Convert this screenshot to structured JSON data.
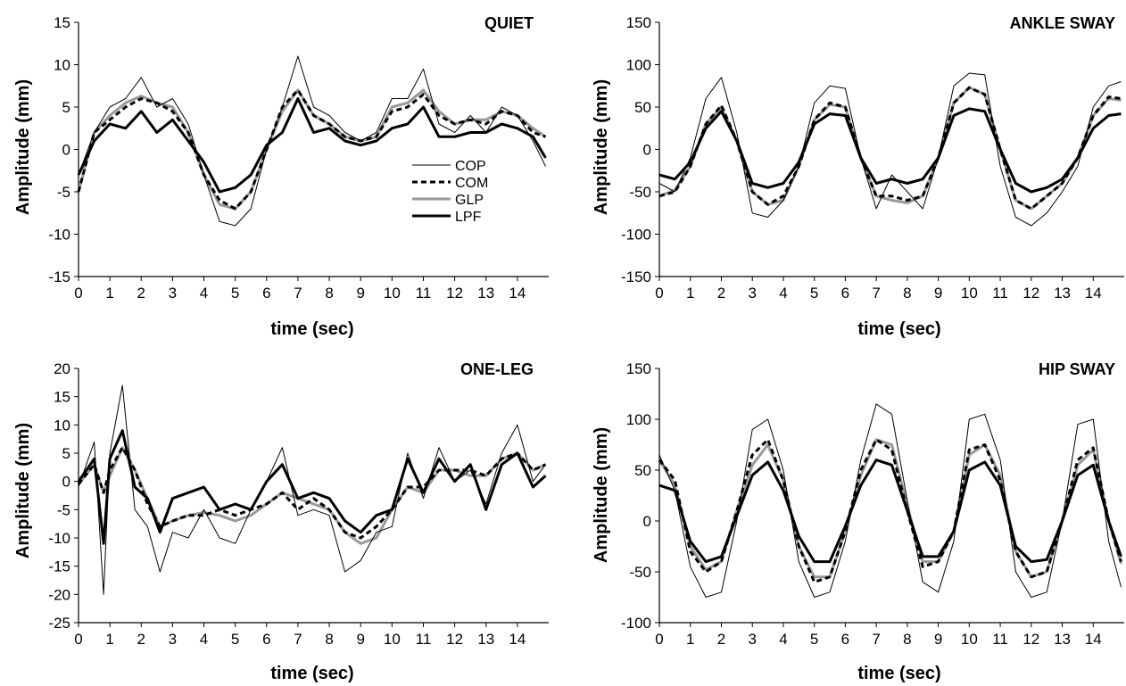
{
  "legend": [
    {
      "name": "COP",
      "color": "#000000",
      "width": 1,
      "dash": ""
    },
    {
      "name": "COM",
      "color": "#000000",
      "width": 3,
      "dash": "6,4"
    },
    {
      "name": "GLP",
      "color": "#999999",
      "width": 3,
      "dash": ""
    },
    {
      "name": "LPF",
      "color": "#000000",
      "width": 3,
      "dash": ""
    }
  ],
  "chart_data": [
    {
      "type": "line",
      "title": "QUIET",
      "xlabel": "time (sec)",
      "ylabel": "Amplitude (mm)",
      "xlim": [
        0,
        15
      ],
      "ylim": [
        -15,
        15
      ],
      "xticks": [
        0,
        1,
        2,
        3,
        4,
        5,
        6,
        7,
        8,
        9,
        10,
        11,
        12,
        13,
        14
      ],
      "yticks": [
        -15,
        -10,
        -5,
        0,
        5,
        10,
        15
      ],
      "x": [
        0,
        0.5,
        1,
        1.5,
        2,
        2.5,
        3,
        3.5,
        4,
        4.5,
        5,
        5.5,
        6,
        6.5,
        7,
        7.5,
        8,
        8.5,
        9,
        9.5,
        10,
        10.5,
        11,
        11.5,
        12,
        12.5,
        13,
        13.5,
        14,
        14.5,
        14.9
      ],
      "series": [
        {
          "name": "COP",
          "values": [
            -3,
            2,
            5,
            6,
            8.5,
            5,
            6,
            3,
            -3,
            -8.5,
            -9,
            -7,
            0,
            5,
            11,
            5,
            4,
            2,
            1,
            2,
            6,
            6,
            9.5,
            3,
            2,
            4,
            2,
            5,
            4,
            1,
            -2
          ]
        },
        {
          "name": "COM",
          "values": [
            -5,
            2,
            3.5,
            5,
            6,
            5.5,
            4.5,
            2,
            -3,
            -6,
            -7,
            -5,
            0,
            5,
            7,
            4,
            3,
            1.5,
            1,
            1.5,
            4.5,
            5,
            6.5,
            4,
            3,
            3.5,
            3,
            4.5,
            4,
            2,
            1.5
          ]
        },
        {
          "name": "GLP",
          "values": [
            -5,
            2,
            4,
            5.5,
            6.3,
            5.5,
            5,
            2,
            -3,
            -6.5,
            -7,
            -5,
            0,
            4.5,
            7,
            4,
            3,
            1.5,
            1,
            1.5,
            5,
            5.5,
            7,
            4.5,
            3,
            3.5,
            3.5,
            4.5,
            4,
            2.5,
            1.5
          ]
        },
        {
          "name": "LPF",
          "values": [
            -3,
            1,
            3,
            2.5,
            4.5,
            2,
            3.5,
            1,
            -1.5,
            -5,
            -4.5,
            -3,
            0.5,
            2,
            6,
            2,
            2.5,
            1,
            0.5,
            1,
            2.5,
            3,
            5,
            1.5,
            1.5,
            2,
            2,
            3,
            2.5,
            1.5,
            -1
          ]
        }
      ]
    },
    {
      "type": "line",
      "title": "ANKLE SWAY",
      "xlabel": "time (sec)",
      "ylabel": "Amplitude (mm)",
      "xlim": [
        0,
        15
      ],
      "ylim": [
        -150,
        150
      ],
      "xticks": [
        0,
        1,
        2,
        3,
        4,
        5,
        6,
        7,
        8,
        9,
        10,
        11,
        12,
        13,
        14
      ],
      "yticks": [
        -150,
        -100,
        -50,
        0,
        50,
        100,
        150
      ],
      "x": [
        0,
        0.5,
        1,
        1.5,
        2,
        2.5,
        3,
        3.5,
        4,
        4.5,
        5,
        5.5,
        6,
        6.5,
        7,
        7.5,
        8,
        8.5,
        9,
        9.5,
        10,
        10.5,
        11,
        11.5,
        12,
        12.5,
        13,
        13.5,
        14,
        14.5,
        14.9
      ],
      "series": [
        {
          "name": "COP",
          "values": [
            -40,
            -50,
            -10,
            60,
            85,
            20,
            -75,
            -80,
            -60,
            -20,
            55,
            75,
            72,
            -10,
            -70,
            -30,
            -50,
            -70,
            -10,
            75,
            90,
            88,
            -20,
            -80,
            -90,
            -75,
            -50,
            -20,
            50,
            75,
            80
          ]
        },
        {
          "name": "COM",
          "values": [
            -55,
            -50,
            -20,
            30,
            52,
            10,
            -50,
            -65,
            -55,
            -20,
            35,
            55,
            50,
            -10,
            -55,
            -55,
            -60,
            -55,
            -10,
            55,
            73,
            65,
            0,
            -60,
            -70,
            -55,
            -40,
            -10,
            40,
            62,
            60
          ]
        },
        {
          "name": "GLP",
          "values": [
            -55,
            -48,
            -20,
            30,
            50,
            10,
            -50,
            -65,
            -60,
            -20,
            35,
            53,
            50,
            -10,
            -55,
            -60,
            -63,
            -55,
            -10,
            55,
            73,
            65,
            0,
            -60,
            -70,
            -55,
            -40,
            -10,
            40,
            60,
            58
          ]
        },
        {
          "name": "LPF",
          "values": [
            -30,
            -35,
            -15,
            25,
            45,
            10,
            -40,
            -45,
            -40,
            -15,
            30,
            42,
            40,
            -10,
            -40,
            -35,
            -40,
            -35,
            -10,
            40,
            48,
            45,
            0,
            -40,
            -50,
            -45,
            -35,
            -10,
            25,
            40,
            42
          ]
        }
      ]
    },
    {
      "type": "line",
      "title": "ONE-LEG",
      "xlabel": "time (sec)",
      "ylabel": "Amplitude (mm)",
      "xlim": [
        0,
        15
      ],
      "ylim": [
        -25,
        20
      ],
      "xticks": [
        0,
        1,
        2,
        3,
        4,
        5,
        6,
        7,
        8,
        9,
        10,
        11,
        12,
        13,
        14
      ],
      "yticks": [
        -25,
        -20,
        -15,
        -10,
        -5,
        0,
        5,
        10,
        15,
        20
      ],
      "x": [
        0,
        0.5,
        0.8,
        1,
        1.4,
        1.8,
        2.2,
        2.6,
        3,
        3.5,
        4,
        4.5,
        5,
        5.5,
        6,
        6.5,
        7,
        7.5,
        8,
        8.5,
        9,
        9.5,
        10,
        10.5,
        11,
        11.5,
        12,
        12.5,
        13,
        13.5,
        14,
        14.5,
        14.9
      ],
      "series": [
        {
          "name": "COP",
          "values": [
            -1,
            7,
            -20,
            5,
            17,
            -5,
            -8,
            -16,
            -9,
            -10,
            -5,
            -10,
            -11,
            -5,
            0,
            6,
            -6,
            -5,
            -6,
            -16,
            -14,
            -9,
            -8,
            5,
            -3,
            6,
            0,
            2,
            -4,
            5,
            10,
            0,
            3
          ]
        },
        {
          "name": "COM",
          "values": [
            -0.5,
            3,
            -2,
            2,
            6,
            2,
            -4,
            -8,
            -7,
            -6,
            -6,
            -5,
            -6,
            -5,
            -4,
            -2,
            -5,
            -3,
            -5,
            -9,
            -10,
            -8,
            -5,
            -1,
            -1,
            2,
            2,
            2,
            1,
            4,
            5,
            2,
            3
          ]
        },
        {
          "name": "GLP",
          "values": [
            -0.5,
            3,
            -2,
            1,
            6,
            2,
            -3,
            -8,
            -7,
            -6,
            -5.5,
            -6,
            -7,
            -6,
            -4,
            -2,
            -3,
            -4,
            -5,
            -9,
            -11,
            -10,
            -5,
            -1,
            -2,
            2,
            2,
            1,
            1,
            4,
            5,
            2,
            3
          ]
        },
        {
          "name": "LPF",
          "values": [
            0,
            4,
            -11,
            4,
            9,
            -1,
            -3,
            -9,
            -3,
            -2,
            -1,
            -5,
            -4,
            -5,
            0,
            3,
            -3,
            -2,
            -3,
            -7,
            -9,
            -6,
            -5,
            4,
            -2,
            4,
            0,
            3,
            -5,
            3,
            5,
            -1,
            1
          ]
        }
      ]
    },
    {
      "type": "line",
      "title": "HIP SWAY",
      "xlabel": "time (sec)",
      "ylabel": "Amplitude (mm)",
      "xlim": [
        0,
        15
      ],
      "ylim": [
        -100,
        150
      ],
      "xticks": [
        0,
        1,
        2,
        3,
        4,
        5,
        6,
        7,
        8,
        9,
        10,
        11,
        12,
        13,
        14
      ],
      "yticks": [
        -100,
        -50,
        0,
        50,
        100,
        150
      ],
      "x": [
        0,
        0.5,
        1,
        1.5,
        2,
        2.5,
        3,
        3.5,
        4,
        4.5,
        5,
        5.5,
        6,
        6.5,
        7,
        7.5,
        8,
        8.5,
        9,
        9.5,
        10,
        10.5,
        11,
        11.5,
        12,
        12.5,
        13,
        13.5,
        14,
        14.5,
        14.9
      ],
      "series": [
        {
          "name": "COP",
          "values": [
            65,
            30,
            -45,
            -75,
            -70,
            0,
            90,
            100,
            50,
            -40,
            -75,
            -70,
            -20,
            60,
            115,
            105,
            20,
            -60,
            -70,
            -20,
            100,
            105,
            60,
            -50,
            -75,
            -70,
            0,
            95,
            100,
            -20,
            -65
          ]
        },
        {
          "name": "COM",
          "values": [
            60,
            40,
            -30,
            -50,
            -40,
            10,
            65,
            80,
            40,
            -25,
            -60,
            -55,
            -10,
            50,
            80,
            70,
            10,
            -45,
            -40,
            -10,
            70,
            75,
            40,
            -30,
            -55,
            -50,
            0,
            60,
            72,
            0,
            -40
          ]
        },
        {
          "name": "GLP",
          "values": [
            60,
            35,
            -25,
            -48,
            -40,
            10,
            55,
            75,
            40,
            -25,
            -55,
            -55,
            -10,
            45,
            80,
            75,
            15,
            -40,
            -40,
            -10,
            65,
            75,
            45,
            -30,
            -55,
            -50,
            0,
            55,
            70,
            0,
            -42
          ]
        },
        {
          "name": "LPF",
          "values": [
            35,
            30,
            -20,
            -40,
            -35,
            5,
            45,
            58,
            30,
            -15,
            -40,
            -40,
            -5,
            35,
            60,
            55,
            10,
            -35,
            -35,
            -10,
            50,
            58,
            35,
            -25,
            -40,
            -38,
            0,
            45,
            55,
            0,
            -35
          ]
        }
      ]
    }
  ]
}
